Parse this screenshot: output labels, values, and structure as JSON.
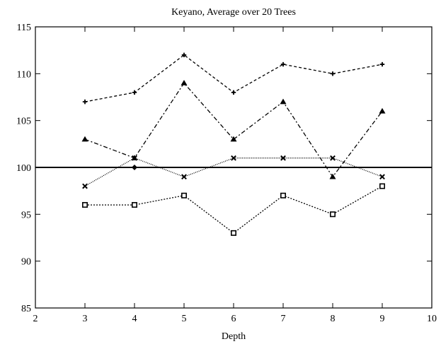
{
  "chart_data": {
    "type": "line",
    "title": "Keyano, Average over 20 Trees",
    "xlabel": "Depth",
    "ylabel": "",
    "xlim": [
      2,
      10
    ],
    "ylim": [
      85,
      115
    ],
    "xticks": [
      "2",
      "3",
      "4",
      "5",
      "6",
      "7",
      "8",
      "9",
      "10"
    ],
    "yticks": [
      "85",
      "90",
      "95",
      "100",
      "105",
      "110",
      "115"
    ],
    "grid": false,
    "reference_line": {
      "y": 100
    },
    "x": [
      3,
      4,
      5,
      6,
      7,
      8,
      9
    ],
    "series": [
      {
        "values": [
          107,
          108,
          112,
          108,
          111,
          110,
          111
        ],
        "marker": "plus",
        "dash": "4,3"
      },
      {
        "values": [
          103,
          101,
          109,
          103,
          107,
          99,
          106
        ],
        "marker": "triangle",
        "dash": "6,3,2,3"
      },
      {
        "values": [
          98,
          101,
          99,
          101,
          101,
          101,
          99
        ],
        "marker": "cross",
        "dash": "1,1.5"
      },
      {
        "values": [
          96,
          96,
          97,
          93,
          97,
          95,
          98
        ],
        "marker": "square",
        "dash": "2,2"
      },
      {
        "values": [
          null,
          100,
          null,
          null,
          null,
          null,
          null
        ],
        "marker": "diamond",
        "dash": "none"
      }
    ]
  }
}
